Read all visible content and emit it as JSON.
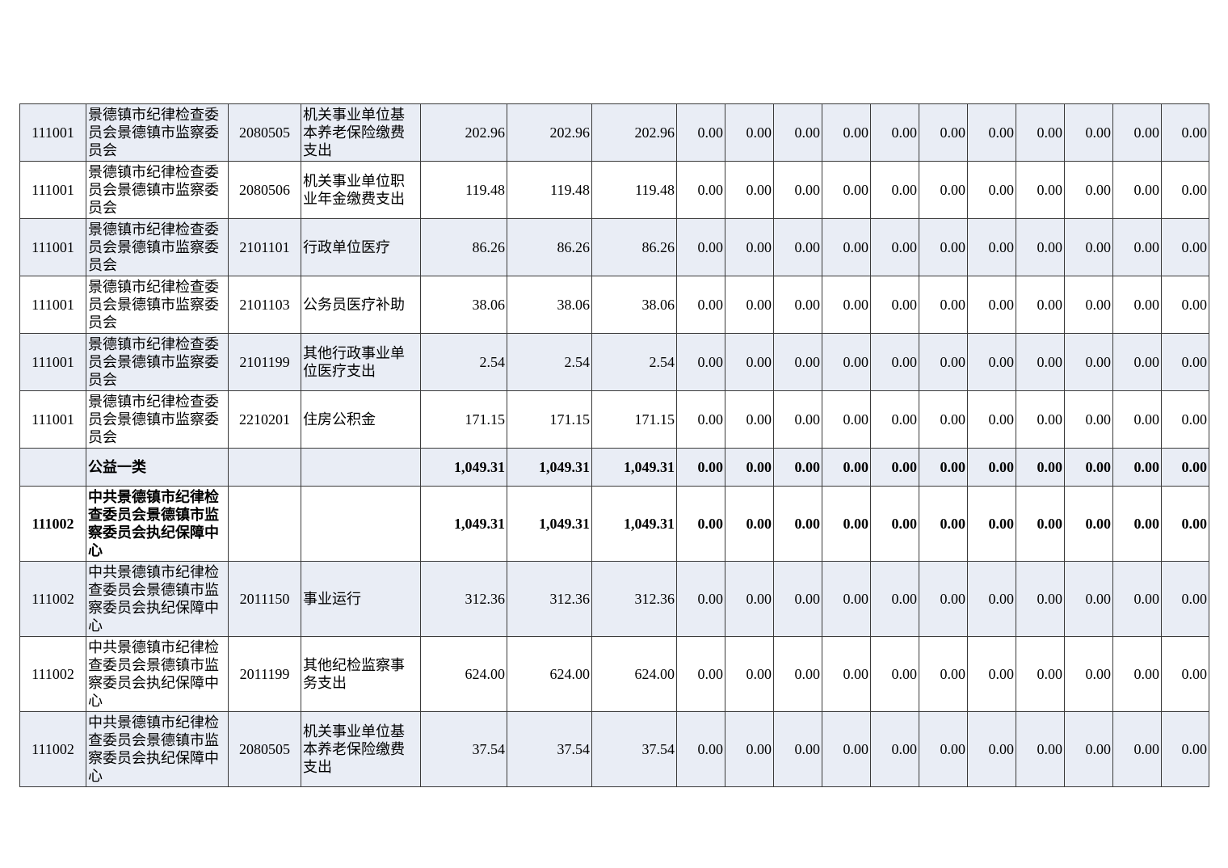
{
  "page": {
    "type": "budget-detail-table-page",
    "shaded_row_fill": "#e9edf5",
    "border_color": "#3a3a3a",
    "text_color": "#000000"
  },
  "table": {
    "rows": [
      {
        "code": "111001",
        "unit": "景德镇市纪律检查委员会景德镇市监察委员会",
        "item_code": "2080505",
        "item_name": "机关事业单位基本养老保险缴费支出",
        "amounts": [
          "202.96",
          "202.96",
          "202.96"
        ],
        "zeros": [
          "0.00",
          "0.00",
          "0.00",
          "0.00",
          "0.00",
          "0.00",
          "0.00",
          "0.00",
          "0.00",
          "0.00",
          "0.00"
        ],
        "summary": false
      },
      {
        "code": "111001",
        "unit": "景德镇市纪律检查委员会景德镇市监察委员会",
        "item_code": "2080506",
        "item_name": "机关事业单位职业年金缴费支出",
        "amounts": [
          "119.48",
          "119.48",
          "119.48"
        ],
        "zeros": [
          "0.00",
          "0.00",
          "0.00",
          "0.00",
          "0.00",
          "0.00",
          "0.00",
          "0.00",
          "0.00",
          "0.00",
          "0.00"
        ],
        "summary": false
      },
      {
        "code": "111001",
        "unit": "景德镇市纪律检查委员会景德镇市监察委员会",
        "item_code": "2101101",
        "item_name": "行政单位医疗",
        "amounts": [
          "86.26",
          "86.26",
          "86.26"
        ],
        "zeros": [
          "0.00",
          "0.00",
          "0.00",
          "0.00",
          "0.00",
          "0.00",
          "0.00",
          "0.00",
          "0.00",
          "0.00",
          "0.00"
        ],
        "summary": false
      },
      {
        "code": "111001",
        "unit": "景德镇市纪律检查委员会景德镇市监察委员会",
        "item_code": "2101103",
        "item_name": "公务员医疗补助",
        "amounts": [
          "38.06",
          "38.06",
          "38.06"
        ],
        "zeros": [
          "0.00",
          "0.00",
          "0.00",
          "0.00",
          "0.00",
          "0.00",
          "0.00",
          "0.00",
          "0.00",
          "0.00",
          "0.00"
        ],
        "summary": false
      },
      {
        "code": "111001",
        "unit": "景德镇市纪律检查委员会景德镇市监察委员会",
        "item_code": "2101199",
        "item_name": "其他行政事业单位医疗支出",
        "amounts": [
          "2.54",
          "2.54",
          "2.54"
        ],
        "zeros": [
          "0.00",
          "0.00",
          "0.00",
          "0.00",
          "0.00",
          "0.00",
          "0.00",
          "0.00",
          "0.00",
          "0.00",
          "0.00"
        ],
        "summary": false
      },
      {
        "code": "111001",
        "unit": "景德镇市纪律检查委员会景德镇市监察委员会",
        "item_code": "2210201",
        "item_name": "住房公积金",
        "amounts": [
          "171.15",
          "171.15",
          "171.15"
        ],
        "zeros": [
          "0.00",
          "0.00",
          "0.00",
          "0.00",
          "0.00",
          "0.00",
          "0.00",
          "0.00",
          "0.00",
          "0.00",
          "0.00"
        ],
        "summary": false
      },
      {
        "code": "",
        "unit": "公益一类",
        "item_code": "",
        "item_name": "",
        "amounts": [
          "1,049.31",
          "1,049.31",
          "1,049.31"
        ],
        "zeros": [
          "0.00",
          "0.00",
          "0.00",
          "0.00",
          "0.00",
          "0.00",
          "0.00",
          "0.00",
          "0.00",
          "0.00",
          "0.00"
        ],
        "summary": true
      },
      {
        "code": "111002",
        "unit": "中共景德镇市纪律检查委员会景德镇市监察委员会执纪保障中心",
        "item_code": "",
        "item_name": "",
        "amounts": [
          "1,049.31",
          "1,049.31",
          "1,049.31"
        ],
        "zeros": [
          "0.00",
          "0.00",
          "0.00",
          "0.00",
          "0.00",
          "0.00",
          "0.00",
          "0.00",
          "0.00",
          "0.00",
          "0.00"
        ],
        "summary": true
      },
      {
        "code": "111002",
        "unit": "中共景德镇市纪律检查委员会景德镇市监察委员会执纪保障中心",
        "item_code": "2011150",
        "item_name": "事业运行",
        "amounts": [
          "312.36",
          "312.36",
          "312.36"
        ],
        "zeros": [
          "0.00",
          "0.00",
          "0.00",
          "0.00",
          "0.00",
          "0.00",
          "0.00",
          "0.00",
          "0.00",
          "0.00",
          "0.00"
        ],
        "summary": false
      },
      {
        "code": "111002",
        "unit": "中共景德镇市纪律检查委员会景德镇市监察委员会执纪保障中心",
        "item_code": "2011199",
        "item_name": "其他纪检监察事务支出",
        "amounts": [
          "624.00",
          "624.00",
          "624.00"
        ],
        "zeros": [
          "0.00",
          "0.00",
          "0.00",
          "0.00",
          "0.00",
          "0.00",
          "0.00",
          "0.00",
          "0.00",
          "0.00",
          "0.00"
        ],
        "summary": false
      },
      {
        "code": "111002",
        "unit": "中共景德镇市纪律检查委员会景德镇市监察委员会执纪保障中心",
        "item_code": "2080505",
        "item_name": "机关事业单位基本养老保险缴费支出",
        "amounts": [
          "37.54",
          "37.54",
          "37.54"
        ],
        "zeros": [
          "0.00",
          "0.00",
          "0.00",
          "0.00",
          "0.00",
          "0.00",
          "0.00",
          "0.00",
          "0.00",
          "0.00",
          "0.00"
        ],
        "summary": false
      }
    ]
  }
}
